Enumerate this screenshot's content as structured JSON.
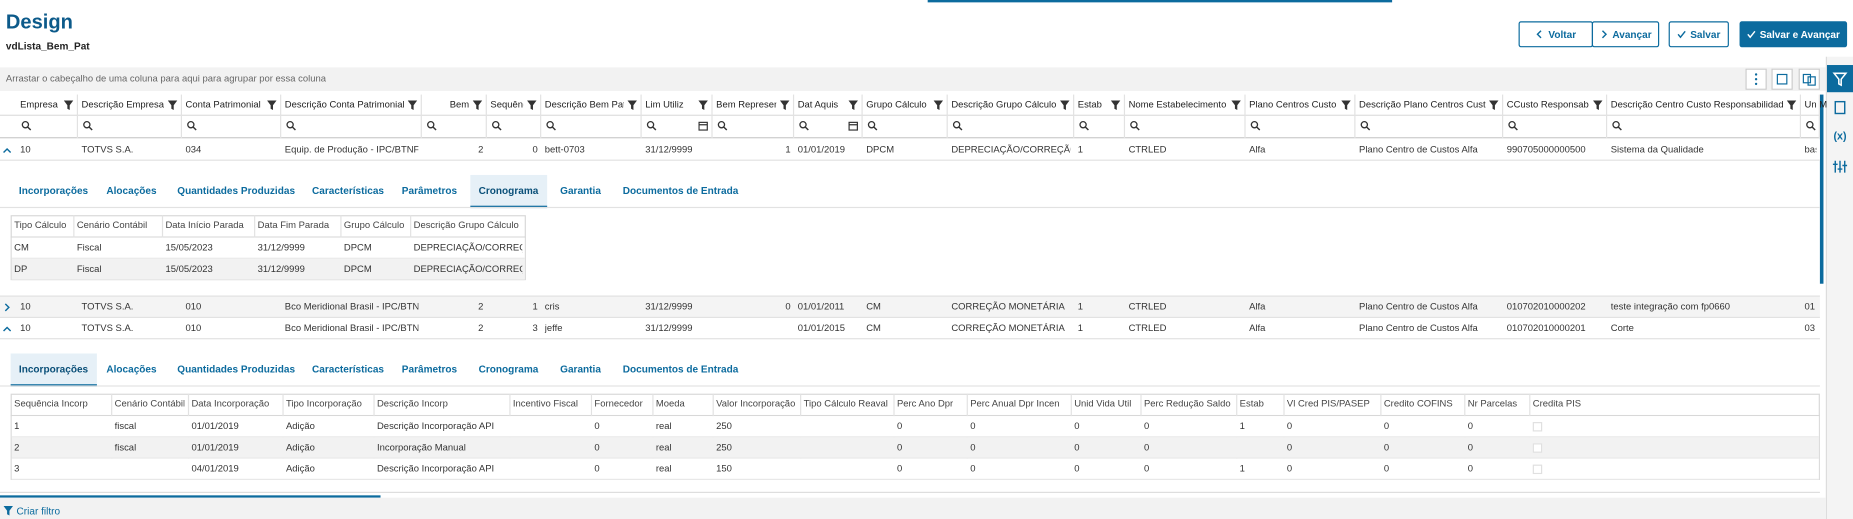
{
  "header": {
    "title": "Design",
    "subtitle": "vdLista_Bem_Pat",
    "buttons": [
      "Voltar",
      "Avançar",
      "Salvar",
      "Salvar e Avançar"
    ]
  },
  "group_hint": "Arrastar o cabeçalho de uma coluna para aqui para agrupar por essa coluna",
  "grid": {
    "columns": [
      "Empresa",
      "Descrição Empresa",
      "Conta Patrimonial",
      "Descrição Conta Patrimonial",
      "Bem",
      "Sequência",
      "Descrição Bem Pat",
      "Lim Utiliz",
      "Bem Represen",
      "Dat Aquis",
      "Grupo Cálculo",
      "Descrição Grupo Cálculo",
      "Estab",
      "Nome Estabelecimento",
      "Plano Centros Custo",
      "Descrição Plano Centros Custo",
      "CCusto Responsab",
      "Descrição Centro Custo Responsabilidade",
      "Un M"
    ],
    "rows": [
      {
        "cells": [
          "10",
          "TOTVS S.A.",
          "034",
          "Equip. de Produção - IPC/BTNF",
          "2",
          "0",
          "bett-0703",
          "31/12/9999",
          "1",
          "01/01/2019",
          "DPCM",
          "DEPRECIAÇÃO/CORREÇÃO",
          "1",
          "CTRLED",
          "Alfa",
          "Plano Centro de Custos Alfa",
          "990705000000500",
          "Sistema da Qualidade",
          "bas"
        ],
        "detail": {
          "tabs": [
            "Incorporações",
            "Alocações",
            "Quantidades Produzidas",
            "Características",
            "Parâmetros",
            "Cronograma",
            "Garantia",
            "Documentos de Entrada"
          ],
          "active_tab": 5,
          "table": {
            "columns": [
              "Tipo Cálculo",
              "Cenário Contábil",
              "Data Início Parada",
              "Data Fim Parada",
              "Grupo Cálculo",
              "Descrição Grupo Cálculo"
            ],
            "rows": [
              [
                "CM",
                "Fiscal",
                "15/05/2023",
                "31/12/9999",
                "DPCM",
                "DEPRECIAÇÃO/CORREÇÃO"
              ],
              [
                "DP",
                "Fiscal",
                "15/05/2023",
                "31/12/9999",
                "DPCM",
                "DEPRECIAÇÃO/CORREÇÃO"
              ]
            ]
          }
        }
      },
      {
        "cells": [
          "10",
          "TOTVS S.A.",
          "010",
          "Bco Meridional Brasil - IPC/BTNF",
          "2",
          "1",
          "cris",
          "31/12/9999",
          "0",
          "01/01/2011",
          "CM",
          "CORREÇÃO MONETÁRIA",
          "1",
          "CTRLED",
          "Alfa",
          "Plano Centro de Custos Alfa",
          "010702010000202",
          "teste integração com fp0660",
          "01"
        ]
      },
      {
        "cells": [
          "10",
          "TOTVS S.A.",
          "010",
          "Bco Meridional Brasil - IPC/BTNF",
          "2",
          "3",
          "jeffe",
          "31/12/9999",
          null,
          "01/01/2015",
          "CM",
          "CORREÇÃO MONETÁRIA",
          "1",
          "CTRLED",
          "Alfa",
          "Plano Centro de Custos Alfa",
          "010702010000201",
          "Corte",
          "03"
        ],
        "detail": {
          "tabs": [
            "Incorporações",
            "Alocações",
            "Quantidades Produzidas",
            "Características",
            "Parâmetros",
            "Cronograma",
            "Garantia",
            "Documentos de Entrada"
          ],
          "active_tab": 0,
          "table": {
            "columns": [
              "Sequência Incorp",
              "Cenário Contábil",
              "Data Incorporação",
              "Tipo Incorporação",
              "Descrição Incorp",
              "Incentivo Fiscal",
              "Fornecedor",
              "Moeda",
              "Valor Incorporação",
              "Tipo Cálculo Reaval",
              "Perc Ano Dpr",
              "Perc Anual Dpr Incen",
              "Unid Vida Util",
              "Perc Redução Saldo",
              "Estab",
              "Vl Cred PIS/PASEP",
              "Credito COFINS",
              "Nr Parcelas",
              "Credita PIS"
            ],
            "rows": [
              [
                "1",
                "fiscal",
                "01/01/2019",
                "Adição",
                "Descrição Incorporação API",
                null,
                "0",
                "real",
                "250",
                null,
                "0",
                "0",
                "0",
                "0",
                "1",
                "0",
                "0",
                "0",
                null
              ],
              [
                "2",
                "fiscal",
                "01/01/2019",
                "Adição",
                "Incorporação Manual",
                null,
                "0",
                "real",
                "250",
                null,
                "0",
                "0",
                "0",
                "0",
                null,
                "0",
                "0",
                "0",
                null
              ],
              [
                "3",
                null,
                "04/01/2019",
                "Adição",
                "Descrição Incorporação API",
                null,
                "0",
                "real",
                "150",
                null,
                "0",
                "0",
                "0",
                "0",
                "1",
                "0",
                "0",
                "0",
                null
              ]
            ]
          }
        }
      }
    ]
  },
  "footer": {
    "filter_link": "Criar filtro"
  }
}
